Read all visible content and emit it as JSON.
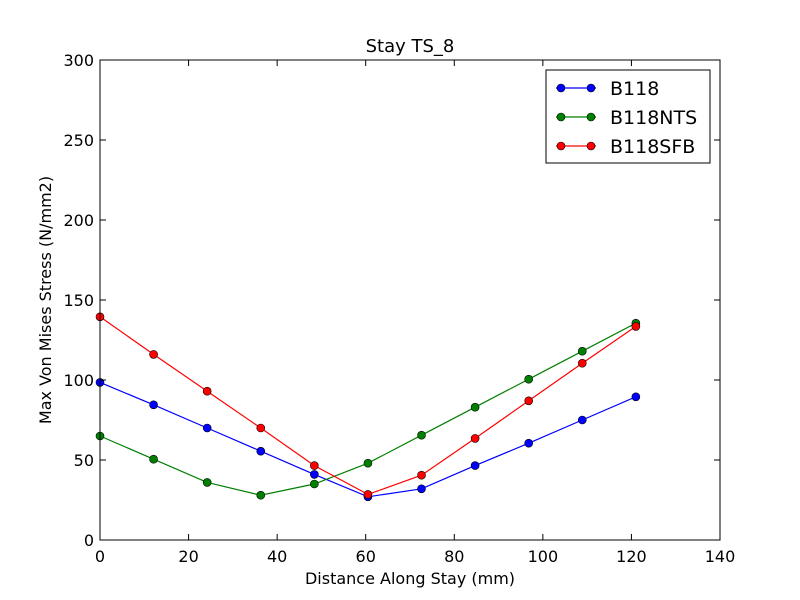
{
  "chart_data": {
    "type": "line",
    "title": "Stay TS_8",
    "xlabel": "Distance Along Stay (mm)",
    "ylabel": "Max Von Mises Stress (N/mm2)",
    "xlim": [
      0,
      140
    ],
    "ylim": [
      0,
      300
    ],
    "xticks": [
      0,
      20,
      40,
      60,
      80,
      100,
      120,
      140
    ],
    "yticks": [
      0,
      50,
      100,
      150,
      200,
      250,
      300
    ],
    "grid": false,
    "legend_position": "top-right",
    "x": [
      0,
      12.1,
      24.2,
      36.3,
      48.4,
      60.5,
      72.6,
      84.7,
      96.8,
      108.9,
      121.0
    ],
    "series": [
      {
        "name": "B118",
        "color": "#0000ff",
        "values": [
          98.5,
          84.5,
          70,
          55.5,
          41,
          27,
          32,
          46.5,
          60.5,
          75,
          89.5
        ]
      },
      {
        "name": "B118NTS",
        "color": "#008000",
        "values": [
          65,
          50.5,
          36,
          28,
          35,
          48,
          65.5,
          83,
          100.5,
          118,
          135.5
        ]
      },
      {
        "name": "B118SFB",
        "color": "#ff0000",
        "values": [
          139.5,
          116,
          93,
          70,
          46.5,
          28.5,
          40.5,
          63.5,
          87,
          110.5,
          133.5
        ]
      }
    ]
  }
}
